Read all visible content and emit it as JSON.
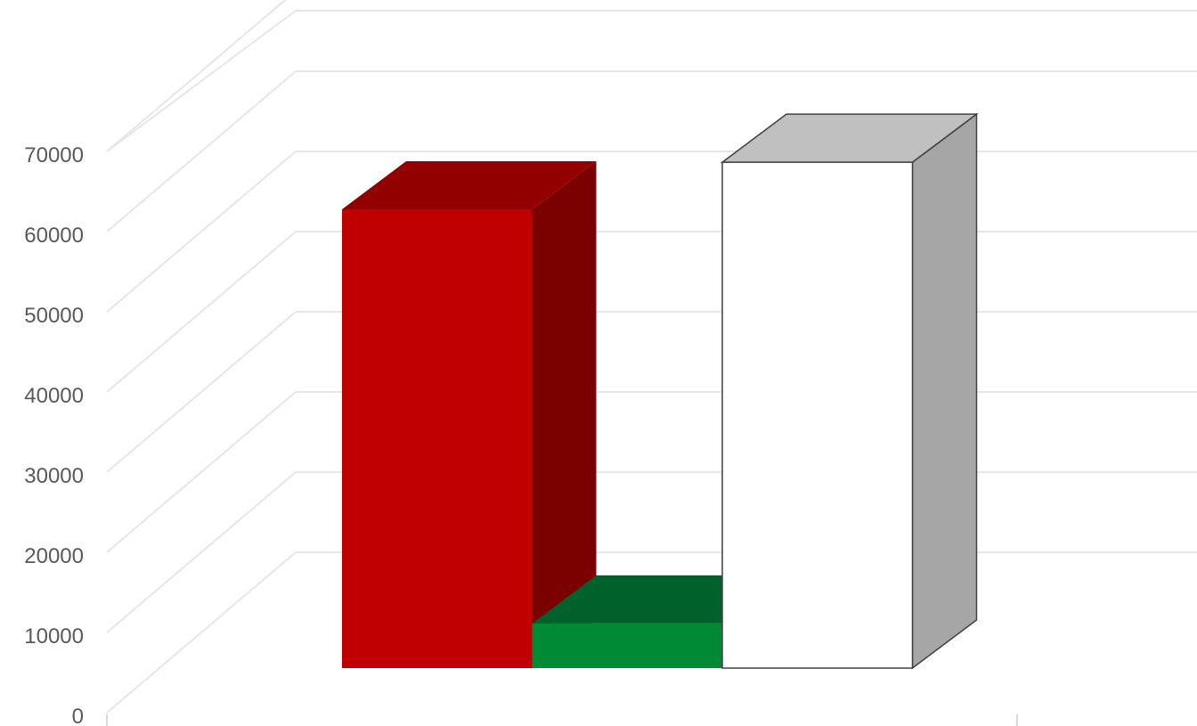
{
  "chart_data": {
    "type": "bar",
    "categories": [
      ""
    ],
    "series": [
      {
        "values": [
          57500
        ]
      },
      {
        "values": [
          5600
        ]
      },
      {
        "values": [
          63400
        ]
      }
    ],
    "ylim": [
      0,
      70000
    ],
    "yticks": [
      0,
      10000,
      20000,
      30000,
      40000,
      50000,
      60000,
      70000
    ],
    "ytick_labels": [
      "0",
      "10000",
      "20000",
      "30000",
      "40000",
      "50000",
      "60000",
      "70000"
    ],
    "grid": true,
    "legend": "none",
    "style": "3d-clustered-column",
    "colors": [
      {
        "front": "#C00000",
        "top": "#930000",
        "side": "#7B0000"
      },
      {
        "front": "#008A36",
        "top": "#00622A",
        "side": "#004E22"
      },
      {
        "front": "#FFFFFF",
        "top": "#C0C0C0",
        "side": "#A6A6A6"
      }
    ],
    "gridline_color": "#E6E6E6",
    "axis_text_color": "#595959"
  }
}
